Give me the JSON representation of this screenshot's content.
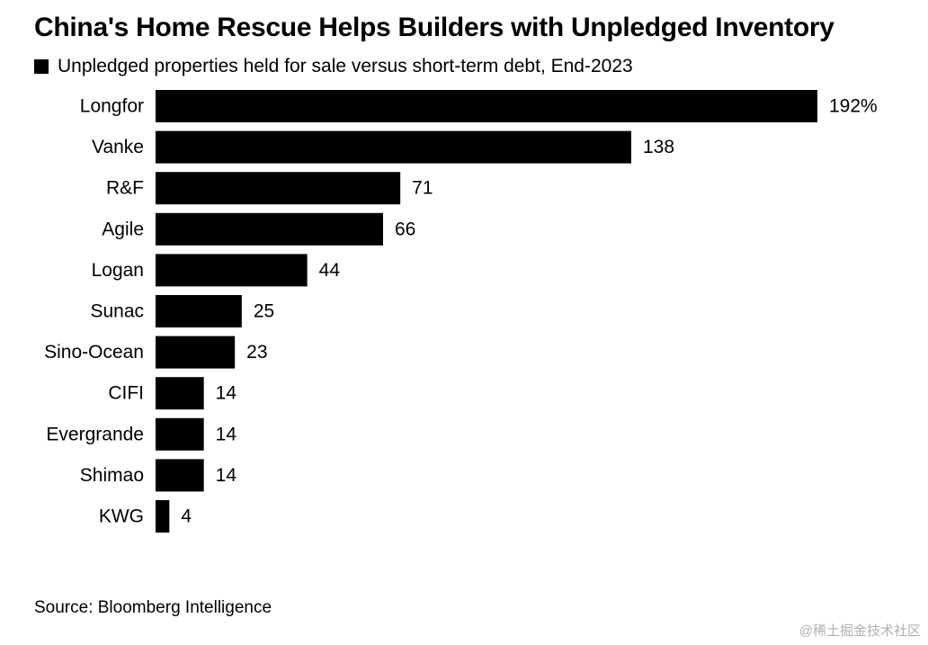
{
  "chart_data": {
    "type": "bar",
    "orientation": "horizontal",
    "title": "China's Home Rescue Helps Builders with Unpledged Inventory",
    "series": [
      {
        "name": "Unpledged properties held for sale versus short-term debt, End-2023",
        "values": [
          192,
          138,
          71,
          66,
          44,
          25,
          23,
          14,
          14,
          14,
          4
        ],
        "value_labels": [
          "192%",
          "138",
          "71",
          "66",
          "44",
          "25",
          "23",
          "14",
          "14",
          "14",
          "4"
        ]
      }
    ],
    "categories": [
      "Longfor",
      "Vanke",
      "R&F",
      "Agile",
      "Logan",
      "Sunac",
      "Sino-Ocean",
      "CIFI",
      "Evergrande",
      "Shimao",
      "KWG"
    ],
    "unit": "%",
    "xlim": [
      0,
      192
    ],
    "legend_position": "top-left",
    "grid": false,
    "bar_color": "#000000",
    "source": "Source: Bloomberg Intelligence"
  },
  "watermark": "@稀土掘金技术社区"
}
